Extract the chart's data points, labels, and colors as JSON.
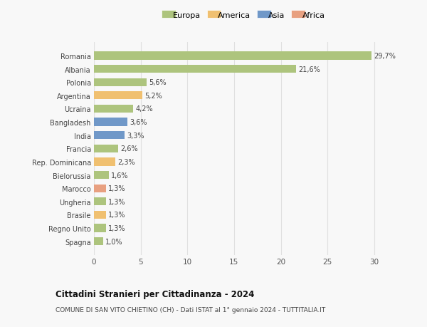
{
  "categories": [
    "Romania",
    "Albania",
    "Polonia",
    "Argentina",
    "Ucraina",
    "Bangladesh",
    "India",
    "Francia",
    "Rep. Dominicana",
    "Bielorussia",
    "Marocco",
    "Ungheria",
    "Brasile",
    "Regno Unito",
    "Spagna"
  ],
  "values": [
    29.7,
    21.6,
    5.6,
    5.2,
    4.2,
    3.6,
    3.3,
    2.6,
    2.3,
    1.6,
    1.3,
    1.3,
    1.3,
    1.3,
    1.0
  ],
  "labels": [
    "29,7%",
    "21,6%",
    "5,6%",
    "5,2%",
    "4,2%",
    "3,6%",
    "3,3%",
    "2,6%",
    "2,3%",
    "1,6%",
    "1,3%",
    "1,3%",
    "1,3%",
    "1,3%",
    "1,0%"
  ],
  "colors": [
    "#adc47d",
    "#adc47d",
    "#adc47d",
    "#f0c070",
    "#adc47d",
    "#7098c8",
    "#7098c8",
    "#adc47d",
    "#f0c070",
    "#adc47d",
    "#e8a080",
    "#adc47d",
    "#f0c070",
    "#adc47d",
    "#adc47d"
  ],
  "legend": [
    {
      "label": "Europa",
      "color": "#adc47d"
    },
    {
      "label": "America",
      "color": "#f0c070"
    },
    {
      "label": "Asia",
      "color": "#7098c8"
    },
    {
      "label": "Africa",
      "color": "#e8a080"
    }
  ],
  "title": "Cittadini Stranieri per Cittadinanza - 2024",
  "subtitle": "COMUNE DI SAN VITO CHIETINO (CH) - Dati ISTAT al 1° gennaio 2024 - TUTTITALIA.IT",
  "xlim": [
    0,
    32
  ],
  "xticks": [
    0,
    5,
    10,
    15,
    20,
    25,
    30
  ],
  "background_color": "#f8f8f8",
  "grid_color": "#e0e0e0",
  "bar_height": 0.6
}
